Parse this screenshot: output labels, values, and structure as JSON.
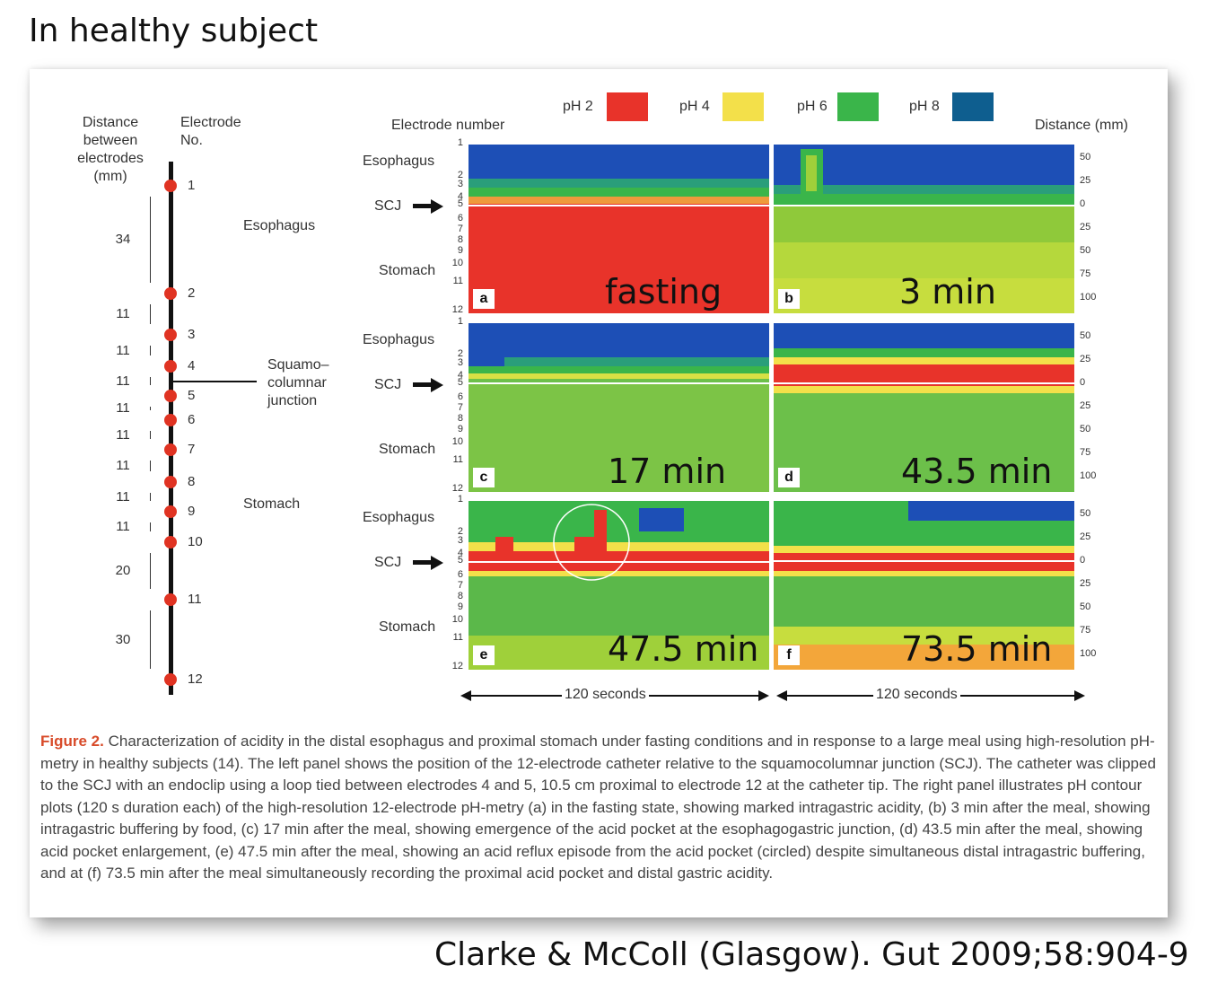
{
  "slide_title": "In healthy subject",
  "citation": "Clarke & McColl (Glasgow). Gut 2009;58:904-9",
  "left_panel": {
    "distance_header": "Distance between electrodes (mm)",
    "electrode_header": "Electrode No.",
    "electrodes": [
      "1",
      "2",
      "3",
      "4",
      "5",
      "6",
      "7",
      "8",
      "9",
      "10",
      "11",
      "12"
    ],
    "gaps": [
      "34",
      "11",
      "11",
      "11",
      "11",
      "11",
      "11",
      "11",
      "11",
      "20",
      "30"
    ],
    "esophagus_label": "Esophagus",
    "scj_label": "Squamo–columnar junction",
    "stomach_label": "Stomach"
  },
  "legend": [
    {
      "label": "pH 2",
      "color": "#e8332a"
    },
    {
      "label": "pH 4",
      "color": "#f3e04a"
    },
    {
      "label": "pH 6",
      "color": "#3ab54a"
    },
    {
      "label": "pH 8",
      "color": "#0e5e8f"
    }
  ],
  "axis": {
    "electrode_number_label": "Electrode number",
    "distance_label": "Distance (mm)",
    "electrode_ticks": [
      "1",
      "2",
      "3",
      "4",
      "5",
      "6",
      "7",
      "8",
      "9",
      "10",
      "11",
      "12"
    ],
    "distance_ticks": [
      "50",
      "25",
      "0",
      "25",
      "50",
      "75",
      "100"
    ],
    "row_labels": {
      "esophagus": "Esophagus",
      "scj": "SCJ",
      "stomach": "Stomach"
    },
    "duration_label": "120 seconds"
  },
  "panels": [
    {
      "letter": "a",
      "time": "fasting"
    },
    {
      "letter": "b",
      "time": "3 min"
    },
    {
      "letter": "c",
      "time": "17 min"
    },
    {
      "letter": "d",
      "time": "43.5 min"
    },
    {
      "letter": "e",
      "time": "47.5 min"
    },
    {
      "letter": "f",
      "time": "73.5 min"
    }
  ],
  "caption": {
    "figure_label": "Figure 2.",
    "text": "Characterization of acidity in the distal esophagus and proximal stomach under fasting conditions and in response to a large meal using high-resolution pH-metry in healthy subjects (14). The left panel shows the position of the 12-electrode catheter relative to the squamocolumnar junction (SCJ). The catheter was clipped to the SCJ with an endoclip using a loop tied between electrodes 4 and 5, 10.5 cm proximal to electrode 12 at the catheter tip. The right panel illustrates pH contour plots (120 s duration each) of the high-resolution 12-electrode pH-metry (a) in the fasting state, showing marked intragastric acidity, (b) 3 min after the meal, showing intragastric buffering by food, (c) 17 min after the meal, showing emergence of the acid pocket at the esophagogastric junction, (d) 43.5 min after the meal, showing acid pocket enlargement, (e) 47.5 min after the meal, showing an acid reflux episode from the acid pocket (circled) despite simultaneous distal intragastric buffering, and at (f) 73.5 min after the meal simultaneously recording the proximal acid pocket and distal gastric acidity."
  }
}
